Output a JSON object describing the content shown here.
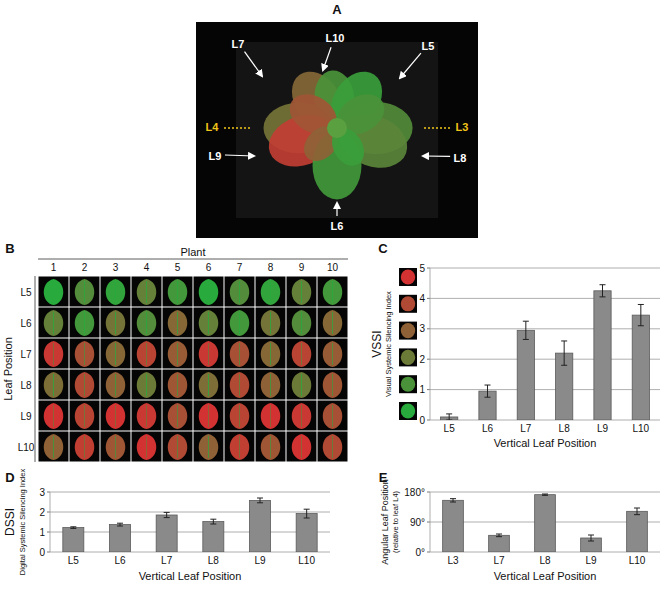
{
  "panels": {
    "A": {
      "letter": "A",
      "leaf_labels": [
        {
          "text": "L7",
          "color": "#ffffff"
        },
        {
          "text": "L10",
          "color": "#ffffff"
        },
        {
          "text": "L5",
          "color": "#ffffff"
        },
        {
          "text": "L4",
          "color": "#f0c419"
        },
        {
          "text": "L3",
          "color": "#f0c419"
        },
        {
          "text": "L9",
          "color": "#ffffff"
        },
        {
          "text": "L8",
          "color": "#ffffff"
        },
        {
          "text": "L6",
          "color": "#ffffff"
        }
      ]
    },
    "B": {
      "letter": "B",
      "column_title": "Plant",
      "columns": [
        1,
        2,
        3,
        4,
        5,
        6,
        7,
        8,
        9,
        10
      ],
      "row_title": "Leaf Position",
      "rows": [
        "L5",
        "L6",
        "L7",
        "L8",
        "L9",
        "L10"
      ]
    }
  },
  "chart_data": [
    {
      "type": "bar",
      "panel": "C",
      "ylabel": "VSSI",
      "ylabel_sub": "Visual Systemic Silencing Index",
      "xlabel": "Vertical Leaf Position",
      "categories": [
        "L5",
        "L6",
        "L7",
        "L8",
        "L9",
        "L10"
      ],
      "values": [
        0.1,
        0.95,
        2.95,
        2.2,
        4.25,
        3.45
      ],
      "errors": [
        0.1,
        0.2,
        0.3,
        0.4,
        0.2,
        0.35
      ],
      "ylim": [
        0,
        5
      ],
      "yticks": [
        0,
        1,
        2,
        3,
        4,
        5
      ],
      "grid": true,
      "color": "#8a8a8a"
    },
    {
      "type": "bar",
      "panel": "D",
      "ylabel": "DSSI",
      "ylabel_sub": "Digital Systemic Silencing Index",
      "xlabel": "Vertical Leaf Position",
      "categories": [
        "L5",
        "L6",
        "L7",
        "L8",
        "L9",
        "L10"
      ],
      "values": [
        1.22,
        1.37,
        1.85,
        1.52,
        2.58,
        1.92
      ],
      "errors": [
        0.04,
        0.07,
        0.13,
        0.12,
        0.12,
        0.22
      ],
      "ylim": [
        0,
        3
      ],
      "yticks": [
        0,
        1,
        2,
        3
      ],
      "grid": true,
      "color": "#8a8a8a"
    },
    {
      "type": "bar",
      "panel": "E",
      "ylabel": "Angular Leaf Position",
      "ylabel_sub": "(relative to leaf L4)",
      "xlabel": "Vertical Leaf Position",
      "categories": [
        "L3",
        "L7",
        "L8",
        "L9",
        "L10"
      ],
      "values": [
        155,
        50,
        172,
        42,
        122
      ],
      "errors": [
        5,
        4,
        2,
        9,
        10
      ],
      "ylim": [
        0,
        180
      ],
      "yticks": [
        {
          "value": 0,
          "label": "0°"
        },
        {
          "value": 90,
          "label": "90°"
        },
        {
          "value": 180,
          "label": "180°"
        }
      ],
      "grid": true,
      "color": "#8a8a8a"
    }
  ]
}
